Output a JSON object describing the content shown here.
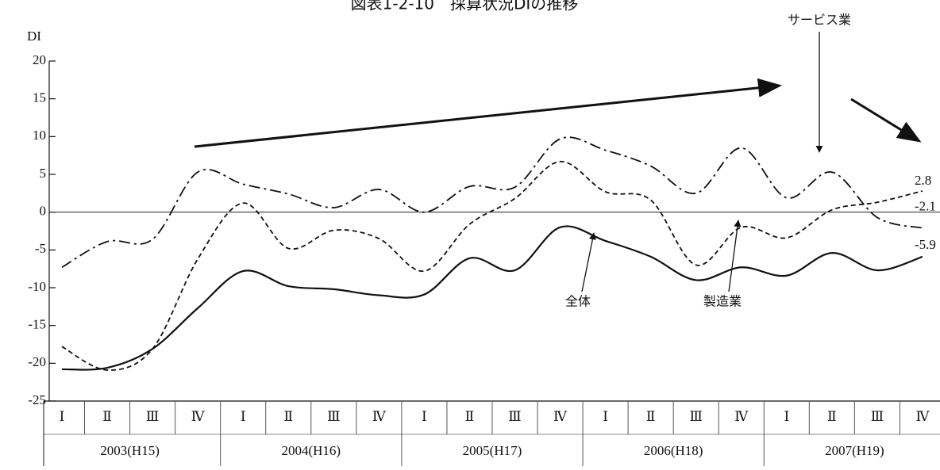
{
  "chart_data": {
    "type": "line",
    "title": "図表1-2-10　採算状況DIの推移",
    "y_label": "DI",
    "categories": [
      "Ⅰ",
      "Ⅱ",
      "Ⅲ",
      "Ⅳ",
      "Ⅰ",
      "Ⅱ",
      "Ⅲ",
      "Ⅳ",
      "Ⅰ",
      "Ⅱ",
      "Ⅲ",
      "Ⅳ",
      "Ⅰ",
      "Ⅱ",
      "Ⅲ",
      "Ⅳ",
      "Ⅰ",
      "Ⅱ",
      "Ⅲ",
      "Ⅳ"
    ],
    "years": [
      "2003(H15)",
      "2004(H16)",
      "2005(H17)",
      "2006(H18)",
      "2007(H19)"
    ],
    "ylim": [
      -25,
      20
    ],
    "yticks": [
      -25,
      -20,
      -15,
      -10,
      -5,
      0,
      5,
      10,
      15,
      20
    ],
    "series": [
      {
        "name": "サービス業",
        "color": "#111111",
        "dash": "14 5 3 5",
        "values": [
          -7.3,
          -3.9,
          -3.6,
          5.3,
          3.7,
          2.4,
          0.6,
          3.0,
          0,
          3.4,
          3.3,
          9.7,
          8.2,
          6.1,
          2.5,
          8.5,
          1.9,
          5.3,
          -0.7,
          -2.1
        ]
      },
      {
        "name": "製造業",
        "color": "#111111",
        "dash": "6 4",
        "values": [
          -17.8,
          -20.9,
          -18.1,
          -6.2,
          1.2,
          -4.8,
          -2.4,
          -3.5,
          -7.8,
          -1.6,
          1.8,
          6.7,
          2.7,
          1.6,
          -7,
          -2,
          -3.4,
          0.3,
          1.3,
          2.8
        ]
      },
      {
        "name": "全体",
        "color": "#111111",
        "dash": "none",
        "values": [
          -20.8,
          -20.6,
          -18.1,
          -12.7,
          -7.8,
          -9.8,
          -10.2,
          -11,
          -10.9,
          -6.1,
          -7.7,
          -2,
          -3.8,
          -5.9,
          -9,
          -7.3,
          -8.4,
          -5.4,
          -7.7,
          -5.9
        ]
      }
    ]
  }
}
